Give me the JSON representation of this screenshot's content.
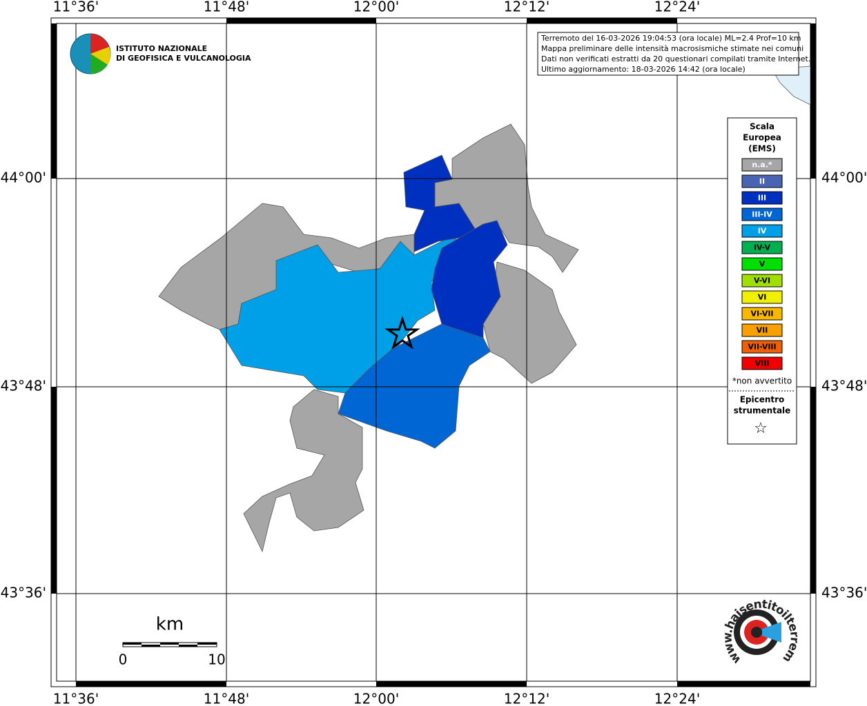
{
  "header": {
    "logo_line1": "ISTITUTO NAZIONALE",
    "logo_line2": "DI GEOFISICA E VULCANOLOGIA"
  },
  "info": [
    "Terremoto del 16-03-2026 19:04:53 (ora locale) ML=2.4 Prof=10 km",
    "Mappa preliminare delle intensità macrosismiche stimate nei comuni",
    "Dati non verificati estratti da 20 questionari compilati tramite Internet.",
    "Ultimo aggiornamento: 18-03-2026 14:42 (ora locale)"
  ],
  "longitude_labels": [
    "11°36'",
    "11°48'",
    "12°00'",
    "12°12'",
    "12°24'"
  ],
  "latitude_labels": [
    "44°00'",
    "43°48'",
    "43°36'"
  ],
  "legend": {
    "title": [
      "Scala",
      "Europea",
      "(EMS)"
    ],
    "items": [
      {
        "label": "n.a.*",
        "color": "#a6a6a6"
      },
      {
        "label": "II",
        "color": "#4a64b4"
      },
      {
        "label": "III",
        "color": "#0030c0"
      },
      {
        "label": "III-IV",
        "color": "#0066d4"
      },
      {
        "label": "IV",
        "color": "#00a0e8"
      },
      {
        "label": "IV-V",
        "color": "#00b050"
      },
      {
        "label": "V",
        "color": "#00e000"
      },
      {
        "label": "V-VI",
        "color": "#a0e000"
      },
      {
        "label": "VI",
        "color": "#f0f000"
      },
      {
        "label": "VI-VII",
        "color": "#f8b800"
      },
      {
        "label": "VII",
        "color": "#f8a000"
      },
      {
        "label": "VII-VIII",
        "color": "#f06000"
      },
      {
        "label": "VIII",
        "color": "#f00000"
      }
    ],
    "note": "*non avvertito",
    "epicenter": [
      "Epicentro",
      "strumentale"
    ],
    "epicenter_symbol": "☆"
  },
  "scale_bar": {
    "unit": "km",
    "start": "0",
    "end": "10"
  },
  "footer_logo": "www.haisentitoilterremoto.it"
}
